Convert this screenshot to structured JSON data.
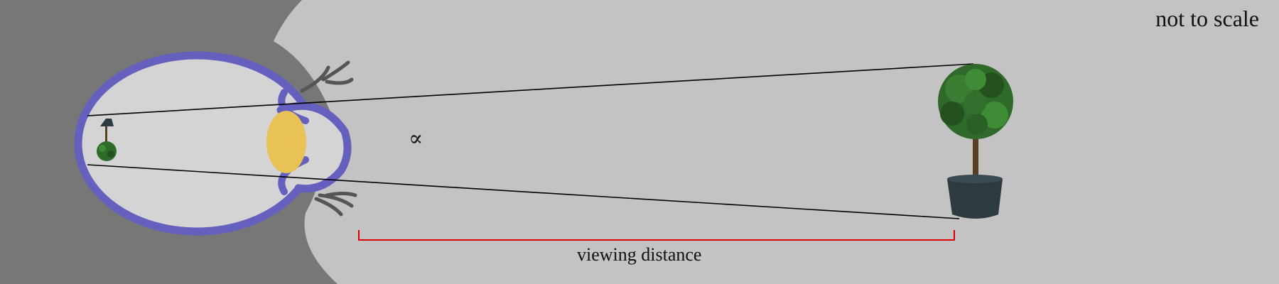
{
  "diagram": {
    "note": "not to scale",
    "angle_label": "∝",
    "distance_label": "viewing distance",
    "colors": {
      "background": "#c3c3c3",
      "head": "#777777",
      "eye_outline": "#6560bd",
      "eye_fill": "#d4d4d4",
      "lens": "#e8c257",
      "sight_lines": "#000000",
      "distance_bracket": "#dd0000",
      "foliage": "#2f6a2a",
      "pot": "#2d3a40"
    },
    "icons": [
      "eye-icon",
      "lens-icon",
      "eyelash-icon",
      "tree-icon",
      "pot-icon",
      "retinal-image-icon"
    ]
  }
}
